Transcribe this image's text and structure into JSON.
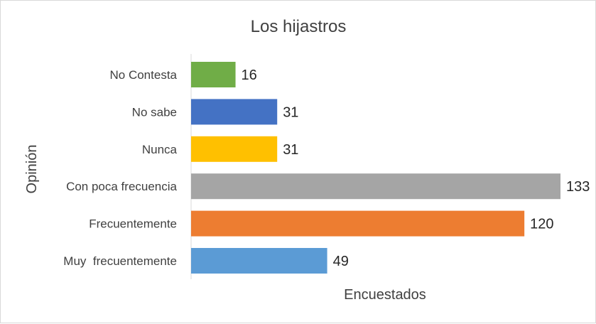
{
  "chart_data": {
    "type": "bar",
    "orientation": "horizontal",
    "title": "Los hijastros",
    "xlabel": "Encuestados",
    "ylabel": "Opinión",
    "xlim": [
      0,
      133
    ],
    "grid": false,
    "categories": [
      "No Contesta",
      "No sabe",
      "Nunca",
      "Con poca frecuencia",
      "Frecuentemente",
      "Muy  frecuentemente"
    ],
    "values": [
      16,
      31,
      31,
      133,
      120,
      49
    ],
    "colors": [
      "#70ad47",
      "#4472c4",
      "#ffc000",
      "#a5a5a5",
      "#ed7d31",
      "#5b9bd5"
    ]
  }
}
